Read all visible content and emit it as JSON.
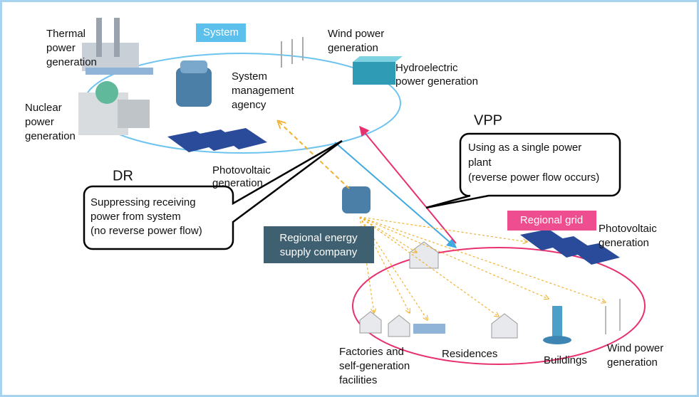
{
  "labels": {
    "thermal": [
      "Thermal",
      "power",
      "generation"
    ],
    "system": [
      "System"
    ],
    "wind_top": [
      "Wind power",
      "generation"
    ],
    "hydro": [
      "Hydroelectric",
      "power generation"
    ],
    "agency": [
      "System",
      "management",
      "agency"
    ],
    "nuclear": [
      "Nuclear",
      "power",
      "generation"
    ],
    "pv_top": [
      "Photovoltaic",
      "generation"
    ],
    "vpp": [
      "VPP"
    ],
    "vpp_note": [
      "Using as a single power",
      "plant",
      "(reverse power flow occurs)"
    ],
    "dr": [
      "DR"
    ],
    "dr_note": [
      "Suppressing receiving",
      "power from system",
      "(no reverse power flow)"
    ],
    "regional_grid": [
      "Regional grid"
    ],
    "pv_right": [
      "Photovoltaic",
      "generation"
    ],
    "supplier": [
      "Regional energy",
      "supply company"
    ],
    "factories": [
      "Factories and",
      "self-generation",
      "facilities"
    ],
    "residences": [
      "Residences"
    ],
    "buildings": [
      "Buildings"
    ],
    "wind_bottom": [
      "Wind power",
      "generation"
    ]
  }
}
